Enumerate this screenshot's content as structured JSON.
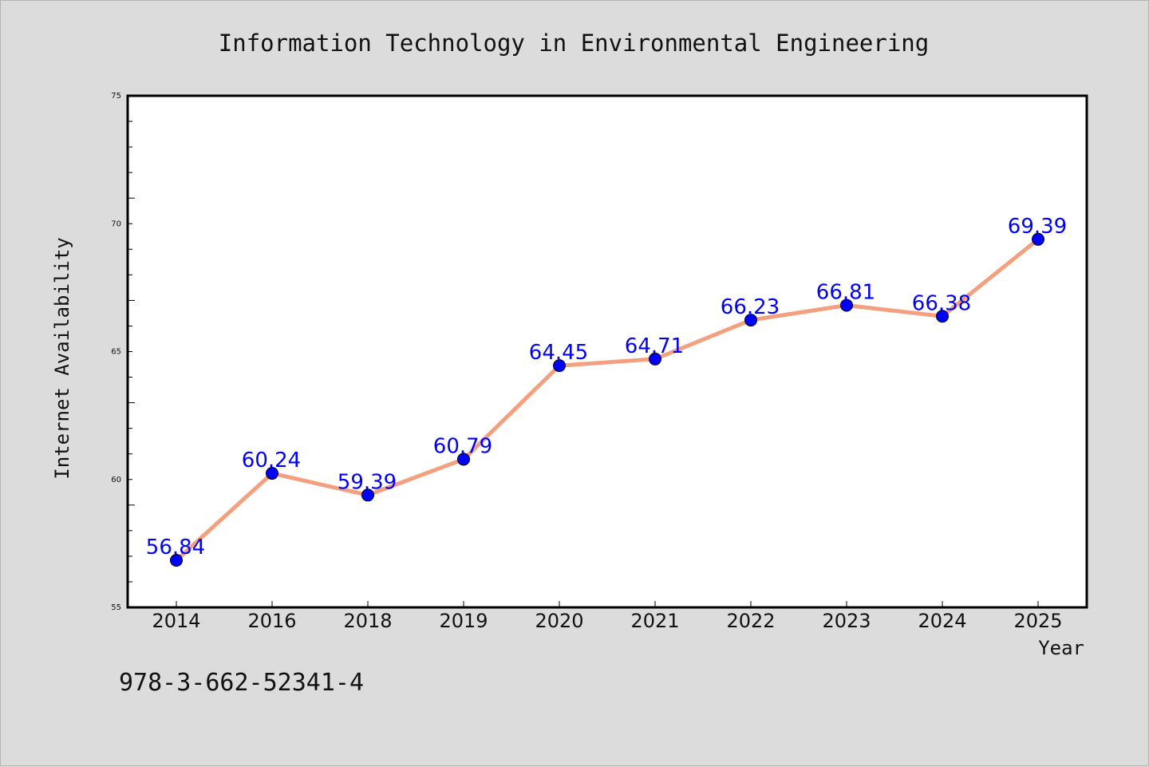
{
  "chart_data": {
    "type": "line",
    "title": "Information Technology in Environmental Engineering",
    "xlabel": "Year",
    "ylabel": "Internet Availability",
    "categories": [
      "2014",
      "2016",
      "2018",
      "2019",
      "2020",
      "2021",
      "2022",
      "2023",
      "2024",
      "2025"
    ],
    "series": [
      {
        "values": [
          56.84,
          60.24,
          59.39,
          60.79,
          64.45,
          64.71,
          66.23,
          66.81,
          66.38,
          69.39
        ],
        "labels": [
          "56.84",
          "60.24",
          "59.39",
          "60.79",
          "64.45",
          "64.71",
          "66.23",
          "66.81",
          "66.38",
          "69.39"
        ],
        "line_color": "#f4a07e",
        "marker_color": "#0000ff"
      }
    ],
    "ylim": [
      55,
      75
    ],
    "yticks": [
      "55",
      "60",
      "65",
      "70",
      "75"
    ],
    "grid": false,
    "legend": "none"
  },
  "footer": {
    "isbn": "978-3-662-52341-4"
  }
}
